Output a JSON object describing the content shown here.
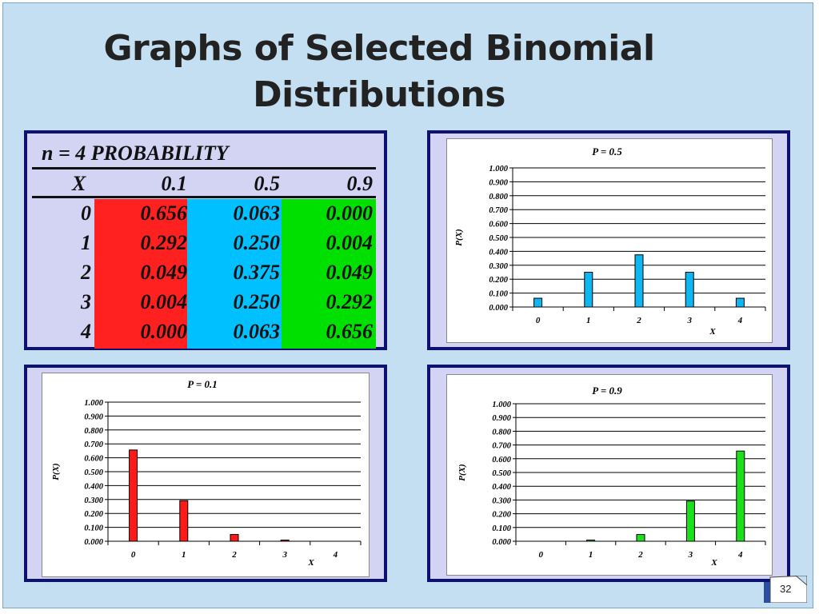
{
  "title": {
    "line1": "Graphs of Selected Binomial",
    "line2": "Distributions"
  },
  "table": {
    "header": "n = 4 PROBABILITY",
    "col_x": "X",
    "col_headers": [
      "0.1",
      "0.5",
      "0.9"
    ],
    "x_values": [
      "0",
      "1",
      "2",
      "3",
      "4"
    ],
    "columns": [
      [
        "0.656",
        "0.292",
        "0.049",
        "0.004",
        "0.000"
      ],
      [
        "0.063",
        "0.250",
        "0.375",
        "0.250",
        "0.063"
      ],
      [
        "0.000",
        "0.004",
        "0.049",
        "0.292",
        "0.656"
      ]
    ],
    "colors": [
      "#ff2020",
      "#00c0ff",
      "#00e000"
    ]
  },
  "chart_data": [
    {
      "type": "bar",
      "title": "P = 0.5",
      "xlabel": "X",
      "ylabel": "P(X)",
      "categories": [
        "0",
        "1",
        "2",
        "3",
        "4"
      ],
      "values": [
        0.063,
        0.25,
        0.375,
        0.25,
        0.063
      ],
      "ylim": [
        0,
        1
      ],
      "yticks": [
        "0.000",
        "0.100",
        "0.200",
        "0.300",
        "0.400",
        "0.500",
        "0.600",
        "0.700",
        "0.800",
        "0.900",
        "1.000"
      ],
      "color": "#0fb7f0",
      "grid": true
    },
    {
      "type": "bar",
      "title": "P = 0.1",
      "xlabel": "X",
      "ylabel": "P(X)",
      "categories": [
        "0",
        "1",
        "2",
        "3",
        "4"
      ],
      "values": [
        0.656,
        0.292,
        0.049,
        0.004,
        0.0
      ],
      "ylim": [
        0,
        1
      ],
      "yticks": [
        "0.000",
        "0.100",
        "0.200",
        "0.300",
        "0.400",
        "0.500",
        "0.600",
        "0.700",
        "0.800",
        "0.900",
        "1.000"
      ],
      "color": "#ff1a1a",
      "grid": true
    },
    {
      "type": "bar",
      "title": "P = 0.9",
      "xlabel": "X",
      "ylabel": "P(X)",
      "categories": [
        "0",
        "1",
        "2",
        "3",
        "4"
      ],
      "values": [
        0.0,
        0.004,
        0.049,
        0.292,
        0.656
      ],
      "ylim": [
        0,
        1
      ],
      "yticks": [
        "0.000",
        "0.100",
        "0.200",
        "0.300",
        "0.400",
        "0.500",
        "0.600",
        "0.700",
        "0.800",
        "0.900",
        "1.000"
      ],
      "color": "#1de01d",
      "grid": true
    }
  ],
  "page_number": "32"
}
